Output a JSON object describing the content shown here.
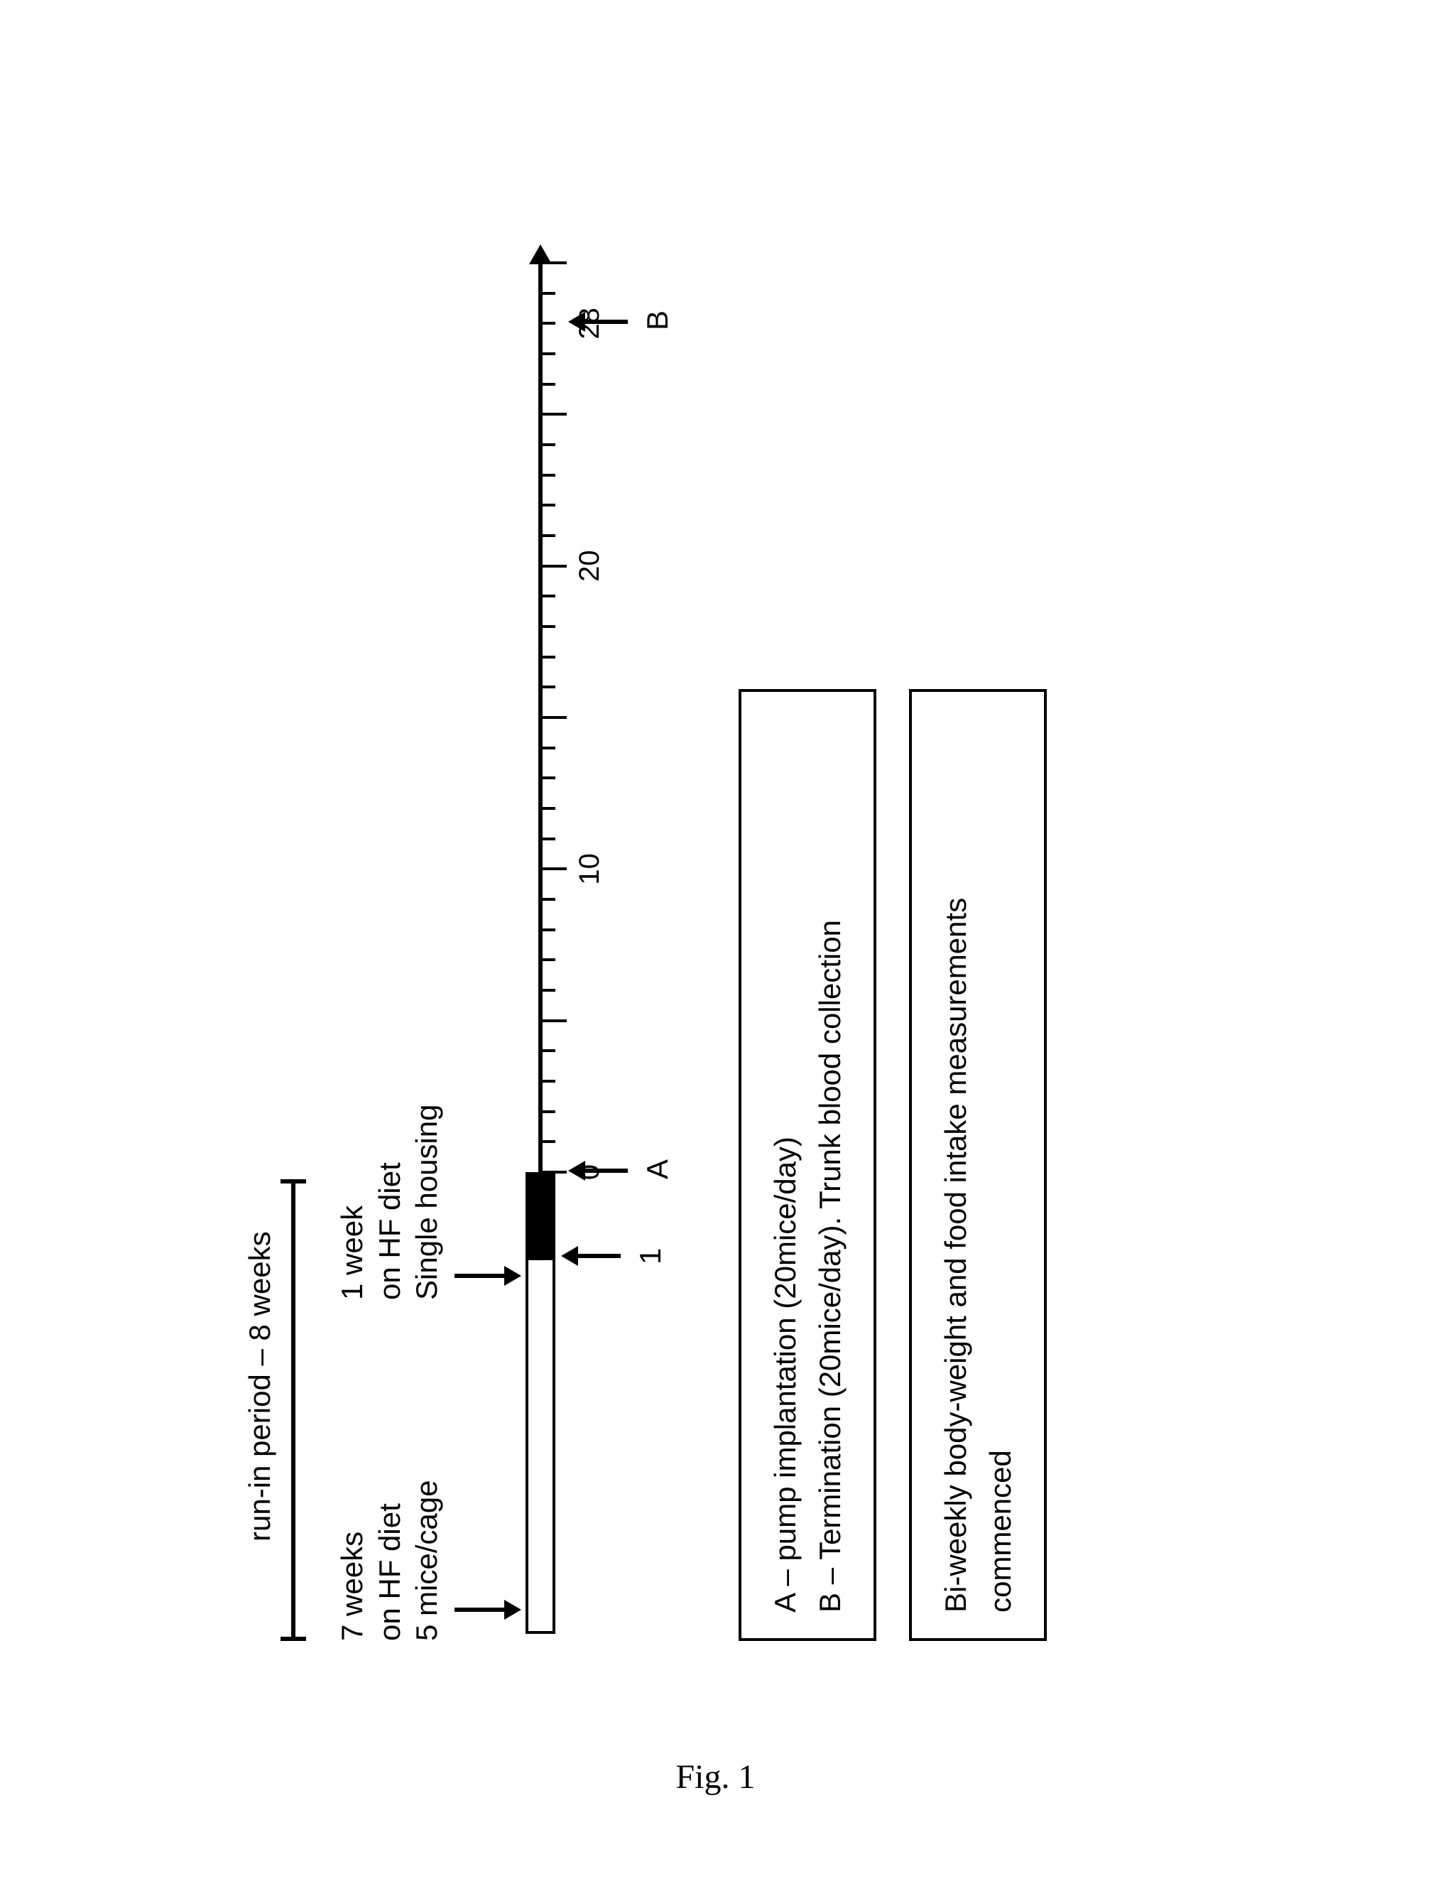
{
  "caption": "Fig. 1",
  "runin": {
    "title": "run-in period – 8 weeks",
    "phase1": "7 weeks\non HF diet\n5 mice/cage",
    "phase2": "1 week\non HF diet\nSingle housing"
  },
  "markers": {
    "below_left": "1",
    "a_letter": "A",
    "b_letter": "B"
  },
  "axis": {
    "start": 0,
    "end": 30,
    "tick_step": 1,
    "major_tick_step": 5,
    "labeled_ticks": [
      0,
      10,
      20,
      28
    ],
    "arrow_at_end": true
  },
  "legend1": {
    "lineA": "A – pump implantation (20mice/day)",
    "lineB": "B – Termination (20mice/day). Trunk blood collection"
  },
  "legend2": {
    "text": "Bi-weekly body-weight and food intake measurements\ncommenced"
  },
  "colors": {
    "ink": "#000000",
    "bg": "#ffffff"
  }
}
